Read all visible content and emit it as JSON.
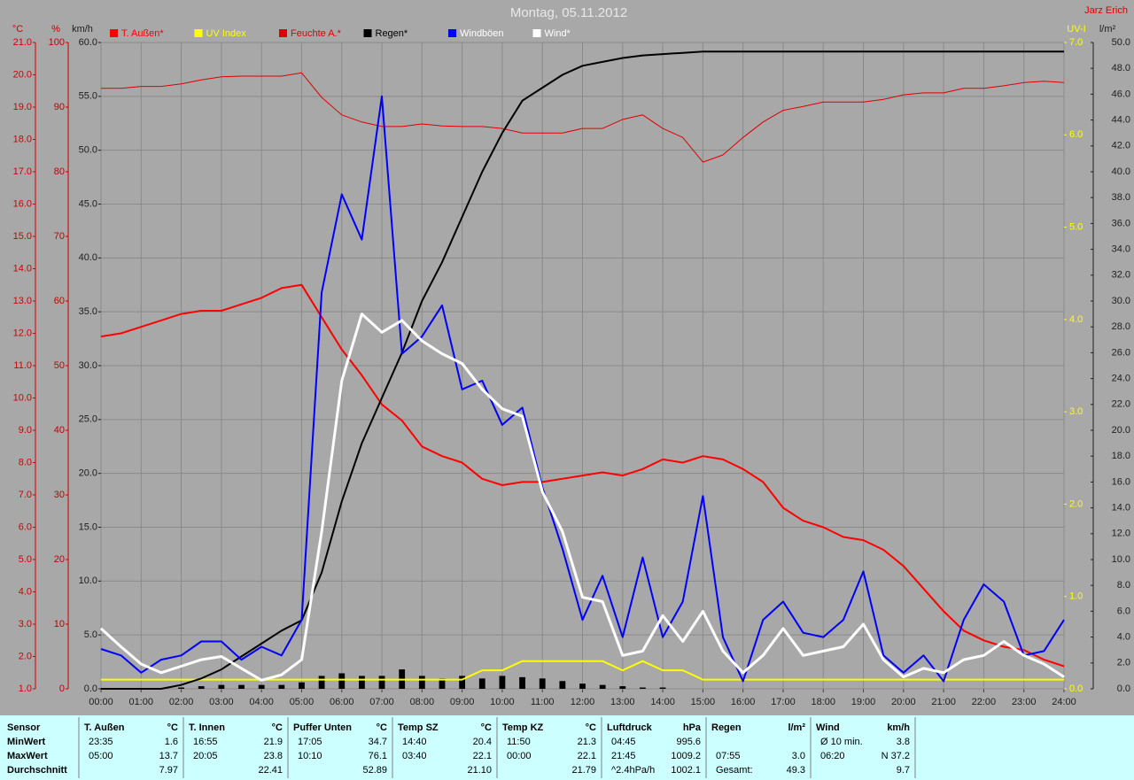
{
  "chart_data": {
    "type": "line",
    "title": "Montag, 05.11.2012",
    "author": "Jarz Erich",
    "x": [
      0,
      0.5,
      1,
      1.5,
      2,
      2.5,
      3,
      3.5,
      4,
      4.5,
      5,
      5.5,
      6,
      6.5,
      7,
      7.5,
      8,
      8.5,
      9,
      9.5,
      10,
      10.5,
      11,
      11.5,
      12,
      12.5,
      13,
      13.5,
      14,
      14.5,
      15,
      15.5,
      16,
      16.5,
      17,
      17.5,
      18,
      18.5,
      19,
      19.5,
      20,
      20.5,
      21,
      21.5,
      22,
      22.5,
      23,
      23.5,
      24
    ],
    "xlim": [
      0,
      24
    ],
    "xticks": [
      {
        "value": 0,
        "label": "00:00"
      },
      {
        "value": 1,
        "label": "01:00"
      },
      {
        "value": 2,
        "label": "02:00"
      },
      {
        "value": 3,
        "label": "03:00"
      },
      {
        "value": 4,
        "label": "04:00"
      },
      {
        "value": 5,
        "label": "05:00"
      },
      {
        "value": 6,
        "label": "06:00"
      },
      {
        "value": 7,
        "label": "07:00"
      },
      {
        "value": 8,
        "label": "08:00"
      },
      {
        "value": 9,
        "label": "09:00"
      },
      {
        "value": 10,
        "label": "10:00"
      },
      {
        "value": 11,
        "label": "11:00"
      },
      {
        "value": 12,
        "label": "12:00"
      },
      {
        "value": 13,
        "label": "13:00"
      },
      {
        "value": 14,
        "label": "14:00"
      },
      {
        "value": 15,
        "label": "15:00"
      },
      {
        "value": 16,
        "label": "16:00"
      },
      {
        "value": 17,
        "label": "17:00"
      },
      {
        "value": 18,
        "label": "18:00"
      },
      {
        "value": 19,
        "label": "19:00"
      },
      {
        "value": 20,
        "label": "20:00"
      },
      {
        "value": 21,
        "label": "21:00"
      },
      {
        "value": 22,
        "label": "22:00"
      },
      {
        "value": 23,
        "label": "23:00"
      },
      {
        "value": 24,
        "label": "24:00"
      }
    ],
    "ylabel": "km/h",
    "ylim": [
      0,
      60
    ],
    "yticks": [
      {
        "value": 0,
        "label": "0.0"
      },
      {
        "value": 5,
        "label": "5.0"
      },
      {
        "value": 10,
        "label": "10.0"
      },
      {
        "value": 15,
        "label": "15.0"
      },
      {
        "value": 20,
        "label": "20.0"
      },
      {
        "value": 25,
        "label": "25.0"
      },
      {
        "value": 30,
        "label": "30.0"
      },
      {
        "value": 35,
        "label": "35.0"
      },
      {
        "value": 40,
        "label": "40.0"
      },
      {
        "value": 45,
        "label": "45.0"
      },
      {
        "value": 50,
        "label": "50.0"
      },
      {
        "value": 55,
        "label": "55.0"
      },
      {
        "value": 60,
        "label": "60.0"
      }
    ],
    "y2label": "°C",
    "y2lim": [
      1,
      21
    ],
    "y2ticks": [
      {
        "value": 1,
        "label": "1.0"
      },
      {
        "value": 2,
        "label": "2.0"
      },
      {
        "value": 3,
        "label": "3.0"
      },
      {
        "value": 4,
        "label": "4.0"
      },
      {
        "value": 5,
        "label": "5.0"
      },
      {
        "value": 6,
        "label": "6.0"
      },
      {
        "value": 7,
        "label": "7.0"
      },
      {
        "value": 8,
        "label": "8.0"
      },
      {
        "value": 9,
        "label": "9.0"
      },
      {
        "value": 10,
        "label": "10.0"
      },
      {
        "value": 11,
        "label": "11.0"
      },
      {
        "value": 12,
        "label": "12.0"
      },
      {
        "value": 13,
        "label": "13.0"
      },
      {
        "value": 14,
        "label": "14.0"
      },
      {
        "value": 15,
        "label": "15.0"
      },
      {
        "value": 16,
        "label": "16.0"
      },
      {
        "value": 17,
        "label": "17.0"
      },
      {
        "value": 18,
        "label": "18.0"
      },
      {
        "value": 19,
        "label": "19.0"
      },
      {
        "value": 20,
        "label": "20.0"
      },
      {
        "value": 21,
        "label": "21.0"
      }
    ],
    "y3label": "%",
    "y3lim": [
      0,
      100
    ],
    "y3ticks": [
      0,
      10,
      20,
      30,
      40,
      50,
      60,
      70,
      80,
      90,
      100
    ],
    "y4label": "UV-I",
    "y4lim": [
      0,
      7
    ],
    "y4ticks": [
      {
        "value": 0,
        "label": "0.0"
      },
      {
        "value": 1,
        "label": "1.0"
      },
      {
        "value": 2,
        "label": "2.0"
      },
      {
        "value": 3,
        "label": "3.0"
      },
      {
        "value": 4,
        "label": "4.0"
      },
      {
        "value": 5,
        "label": "5.0"
      },
      {
        "value": 6,
        "label": "6.0"
      },
      {
        "value": 7,
        "label": "7.0"
      }
    ],
    "y5label": "l/m²",
    "y5lim": [
      0,
      50
    ],
    "y5ticks": [
      {
        "value": 0,
        "label": "0.0"
      },
      {
        "value": 2,
        "label": "2.0"
      },
      {
        "value": 4,
        "label": "4.0"
      },
      {
        "value": 6,
        "label": "6.0"
      },
      {
        "value": 8,
        "label": "8.0"
      },
      {
        "value": 10,
        "label": "10.0"
      },
      {
        "value": 12,
        "label": "12.0"
      },
      {
        "value": 14,
        "label": "14.0"
      },
      {
        "value": 16,
        "label": "16.0"
      },
      {
        "value": 18,
        "label": "18.0"
      },
      {
        "value": 20,
        "label": "20.0"
      },
      {
        "value": 22,
        "label": "22.0"
      },
      {
        "value": 24,
        "label": "24.0"
      },
      {
        "value": 26,
        "label": "26.0"
      },
      {
        "value": 28,
        "label": "28.0"
      },
      {
        "value": 30,
        "label": "30.0"
      },
      {
        "value": 32,
        "label": "32.0"
      },
      {
        "value": 34,
        "label": "34.0"
      },
      {
        "value": 36,
        "label": "36.0"
      },
      {
        "value": 38,
        "label": "38.0"
      },
      {
        "value": 40,
        "label": "40.0"
      },
      {
        "value": 42,
        "label": "42.0"
      },
      {
        "value": 44,
        "label": "44.0"
      },
      {
        "value": 46,
        "label": "46.0"
      },
      {
        "value": 48,
        "label": "48.0"
      },
      {
        "value": 50,
        "label": "50.0"
      }
    ],
    "grid": true,
    "series": [
      {
        "kind": "bar",
        "color": "#000000",
        "axis": "y5",
        "values": [
          0,
          0,
          0,
          0,
          0.1,
          0.2,
          0.3,
          0.3,
          0.3,
          0.3,
          0.5,
          1.0,
          1.2,
          1.0,
          1.0,
          1.5,
          1.0,
          0.8,
          1.0,
          0.8,
          1.0,
          0.9,
          0.8,
          0.6,
          0.4,
          0.3,
          0.2,
          0.1,
          0.1,
          0,
          0,
          0,
          0,
          0,
          0,
          0,
          0,
          0,
          0,
          0,
          0,
          0,
          0,
          0,
          0,
          0,
          0,
          0,
          0
        ]
      },
      {
        "name": "T. Außen*",
        "color": "#ff0000",
        "axis": "y2",
        "line_width": 2,
        "values": [
          11.9,
          12.0,
          12.2,
          12.4,
          12.6,
          12.7,
          12.7,
          12.9,
          13.1,
          13.4,
          13.5,
          12.5,
          11.5,
          10.7,
          9.8,
          9.3,
          8.5,
          8.2,
          8.0,
          7.5,
          7.3,
          7.4,
          7.4,
          7.5,
          7.6,
          7.7,
          7.6,
          7.8,
          8.1,
          8.0,
          8.2,
          8.1,
          7.8,
          7.4,
          6.6,
          6.2,
          6.0,
          5.7,
          5.6,
          5.3,
          4.8,
          4.1,
          3.4,
          2.8,
          2.5,
          2.3,
          2.2,
          1.9,
          1.7
        ]
      },
      {
        "name": "UV Index",
        "color": "#ffff00",
        "axis": "y4",
        "line_width": 2,
        "values": [
          0.1,
          0.1,
          0.1,
          0.1,
          0.1,
          0.1,
          0.1,
          0.1,
          0.1,
          0.1,
          0.1,
          0.1,
          0.1,
          0.1,
          0.1,
          0.1,
          0.1,
          0.1,
          0.1,
          0.2,
          0.2,
          0.3,
          0.3,
          0.3,
          0.3,
          0.3,
          0.2,
          0.3,
          0.2,
          0.2,
          0.1,
          0.1,
          0.1,
          0.1,
          0.1,
          0.1,
          0.1,
          0.1,
          0.1,
          0.1,
          0.1,
          0.1,
          0.1,
          0.1,
          0.1,
          0.1,
          0.1,
          0.1,
          0.1
        ]
      },
      {
        "name": "Feuchte A.*",
        "color": "#e00000",
        "axis": "y3",
        "line_width": 1,
        "values": [
          92.9,
          92.9,
          93.2,
          93.2,
          93.6,
          94.2,
          94.7,
          94.8,
          94.8,
          94.8,
          95.3,
          91.5,
          88.8,
          87.7,
          87.0,
          87.0,
          87.4,
          87.1,
          87.0,
          87.0,
          86.7,
          86.0,
          86.0,
          86.0,
          86.7,
          86.7,
          88.1,
          88.8,
          86.7,
          85.3,
          81.5,
          82.6,
          85.3,
          87.7,
          89.5,
          90.1,
          90.8,
          90.8,
          90.8,
          91.2,
          91.9,
          92.2,
          92.2,
          92.9,
          92.9,
          93.3,
          93.8,
          94.0,
          93.8
        ]
      },
      {
        "name": "Regen*",
        "color": "#000000",
        "axis": "y5",
        "line_width": 2,
        "values": [
          0,
          0,
          0,
          0,
          0.3,
          0.8,
          1.5,
          2.5,
          3.5,
          4.5,
          5.3,
          9,
          14.5,
          19,
          22.5,
          26,
          30,
          33,
          36.5,
          40,
          43,
          45.5,
          46.5,
          47.5,
          48.2,
          48.5,
          48.8,
          49,
          49.1,
          49.2,
          49.3,
          49.3,
          49.3,
          49.3,
          49.3,
          49.3,
          49.3,
          49.3,
          49.3,
          49.3,
          49.3,
          49.3,
          49.3,
          49.3,
          49.3,
          49.3,
          49.3,
          49.3,
          49.3
        ]
      },
      {
        "name": "Windböen",
        "color": "#0000ff",
        "axis": "y",
        "line_width": 2,
        "values": [
          3.7,
          3.1,
          1.5,
          2.7,
          3.1,
          4.4,
          4.4,
          2.7,
          3.9,
          3.1,
          6.4,
          36.8,
          45.9,
          41.7,
          55.0,
          31.1,
          32.7,
          35.6,
          27.8,
          28.6,
          24.5,
          26.1,
          18.7,
          13.0,
          6.4,
          10.5,
          4.8,
          12.2,
          4.8,
          8.1,
          17.9,
          4.8,
          0.7,
          6.4,
          8.1,
          5.2,
          4.8,
          6.4,
          10.9,
          3.1,
          1.5,
          3.1,
          0.7,
          6.4,
          9.7,
          8.1,
          3.1,
          3.5,
          6.4
        ]
      },
      {
        "name": "Wind*",
        "color": "#ffffff",
        "axis": "y",
        "line_width": 3,
        "values": [
          5.6,
          3.9,
          2.3,
          1.5,
          2.1,
          2.7,
          3.0,
          1.9,
          0.8,
          1.3,
          2.7,
          14.6,
          28.6,
          34.8,
          33.1,
          34.2,
          32.3,
          31.1,
          30.2,
          27.8,
          26.0,
          25.3,
          18.3,
          14.6,
          8.5,
          8.1,
          3.1,
          3.5,
          6.8,
          4.4,
          7.2,
          3.5,
          1.5,
          3.1,
          5.6,
          3.1,
          3.5,
          3.9,
          6.0,
          2.7,
          1.1,
          1.9,
          1.5,
          2.7,
          3.1,
          4.4,
          3.1,
          2.3,
          1.1
        ]
      }
    ]
  },
  "table": {
    "row_labels": [
      "Sensor",
      "MinWert",
      "MaxWert",
      "Durchschnitt"
    ],
    "groups": [
      {
        "title": "T. Außen",
        "unit": "°C",
        "min": {
          "time": "23:35",
          "value": "1.6"
        },
        "max": {
          "time": "05:00",
          "value": "13.7"
        },
        "avg": {
          "value": "7.97"
        }
      },
      {
        "title": "T. Innen",
        "unit": "°C",
        "min": {
          "time": "16:55",
          "value": "21.9"
        },
        "max": {
          "time": "20:05",
          "value": "23.8"
        },
        "avg": {
          "value": "22.41"
        }
      },
      {
        "title": "Puffer Unten",
        "unit": "°C",
        "min": {
          "time": "17:05",
          "value": "34.7"
        },
        "max": {
          "time": "10:10",
          "value": "76.1"
        },
        "avg": {
          "value": "52.89"
        }
      },
      {
        "title": "Temp SZ",
        "unit": "°C",
        "min": {
          "time": "14:40",
          "value": "20.4"
        },
        "max": {
          "time": "03:40",
          "value": "22.1"
        },
        "avg": {
          "value": "21.10"
        }
      },
      {
        "title": "Temp KZ",
        "unit": "°C",
        "min": {
          "time": "11:50",
          "value": "21.3"
        },
        "max": {
          "time": "00:00",
          "value": "22.1"
        },
        "avg": {
          "value": "21.79"
        }
      },
      {
        "title": "Luftdruck",
        "unit": "hPa",
        "min": {
          "time": "04:45",
          "value": "995.6"
        },
        "max": {
          "time": "21:45",
          "value": "1009.2"
        },
        "avg": {
          "time": "^2.4hPa/h",
          "value": "1002.1"
        }
      },
      {
        "title": "Regen",
        "unit": "l/m²",
        "max": {
          "time": "07:55",
          "value": "3.0"
        },
        "avg": {
          "time": "Gesamt:",
          "value": "49.3"
        }
      },
      {
        "title": "Wind",
        "unit": "km/h",
        "min": {
          "time": "Ø 10 min.",
          "value": "3.8"
        },
        "max": {
          "time": "06:20",
          "value": "N 37.2"
        },
        "avg": {
          "value": "9.7"
        }
      }
    ]
  }
}
